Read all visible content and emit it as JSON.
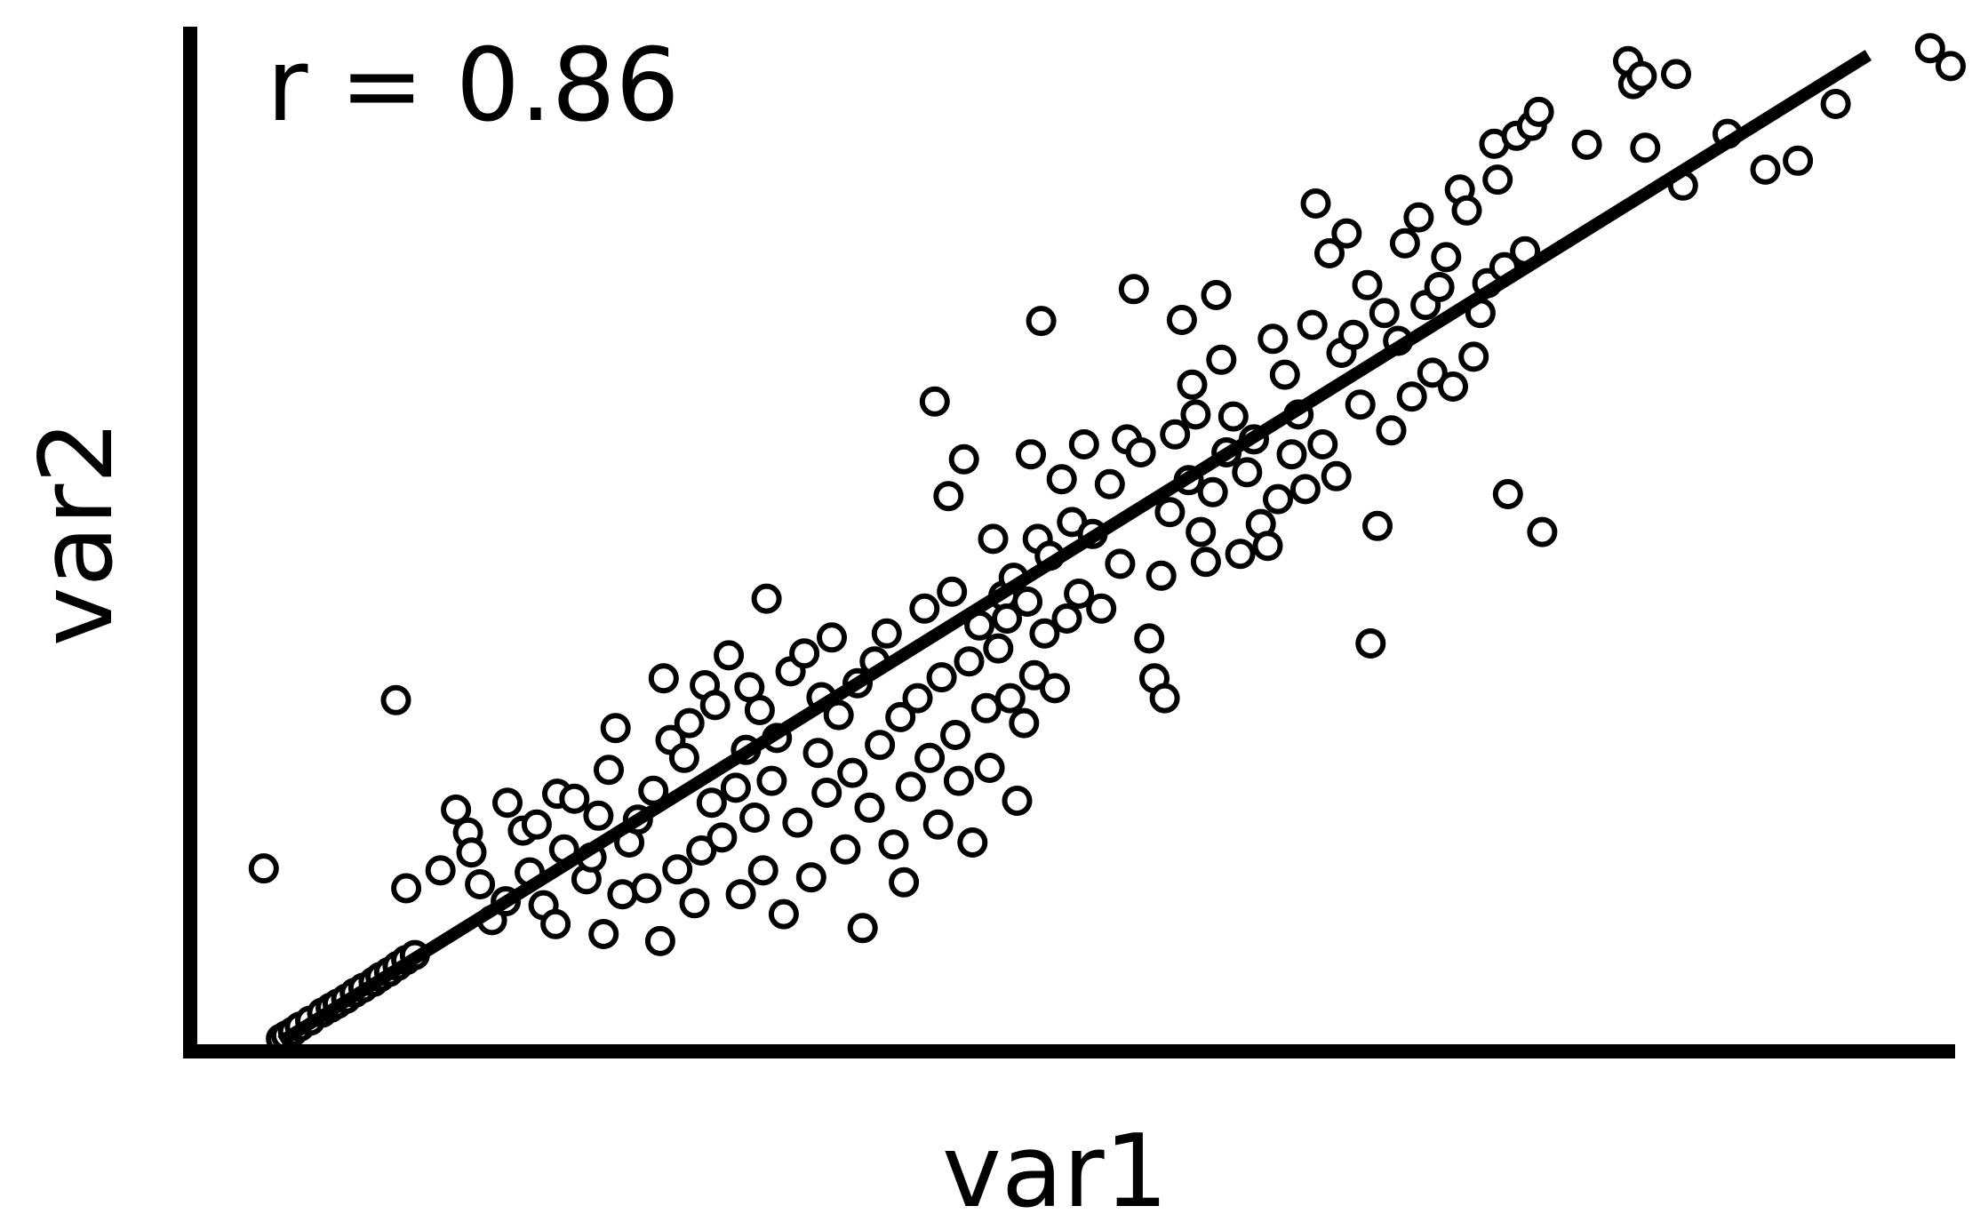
{
  "chart_data": {
    "type": "scatter",
    "xlabel": "var1",
    "ylabel": "var2",
    "annotation": "r = 0.86",
    "xlim": [
      0,
      10
    ],
    "ylim": [
      0,
      10
    ],
    "grid": false,
    "legend": "none",
    "colors": {
      "marker_edge": "#000000",
      "marker_fill": "#ffffff",
      "line": "#000000",
      "axis": "#000000"
    },
    "regression_line": {
      "x": [
        0.27,
        9.52
      ],
      "y": [
        0,
        9.91
      ]
    },
    "points": [
      [
        0.27,
        0.03
      ],
      [
        0.3,
        0.06
      ],
      [
        0.34,
        0.1
      ],
      [
        0.38,
        0.15
      ],
      [
        0.44,
        0.21
      ],
      [
        0.51,
        0.29
      ],
      [
        0.56,
        0.34
      ],
      [
        0.6,
        0.38
      ],
      [
        0.65,
        0.43
      ],
      [
        0.7,
        0.49
      ],
      [
        0.75,
        0.54
      ],
      [
        0.81,
        0.6
      ],
      [
        0.85,
        0.65
      ],
      [
        0.9,
        0.7
      ],
      [
        0.95,
        0.76
      ],
      [
        1.0,
        0.82
      ],
      [
        1.05,
        0.87
      ],
      [
        0.17,
        1.74
      ],
      [
        0.94,
        3.43
      ],
      [
        1.0,
        1.54
      ],
      [
        1.2,
        1.72
      ],
      [
        1.29,
        2.33
      ],
      [
        1.36,
        2.1
      ],
      [
        1.38,
        1.9
      ],
      [
        1.43,
        1.58
      ],
      [
        1.5,
        1.22
      ],
      [
        1.58,
        1.41
      ],
      [
        1.59,
        2.4
      ],
      [
        1.68,
        2.12
      ],
      [
        1.72,
        1.7
      ],
      [
        1.76,
        2.18
      ],
      [
        1.8,
        1.37
      ],
      [
        1.87,
        1.18
      ],
      [
        1.88,
        2.49
      ],
      [
        1.92,
        1.93
      ],
      [
        1.98,
        2.44
      ],
      [
        2.05,
        1.63
      ],
      [
        2.08,
        1.85
      ],
      [
        2.12,
        2.27
      ],
      [
        2.15,
        1.08
      ],
      [
        2.18,
        2.73
      ],
      [
        2.22,
        3.15
      ],
      [
        2.26,
        1.48
      ],
      [
        2.3,
        2.0
      ],
      [
        2.35,
        2.23
      ],
      [
        2.4,
        1.54
      ],
      [
        2.44,
        2.52
      ],
      [
        2.48,
        1.01
      ],
      [
        2.5,
        3.65
      ],
      [
        2.54,
        3.03
      ],
      [
        2.58,
        1.73
      ],
      [
        2.62,
        2.85
      ],
      [
        2.65,
        3.2
      ],
      [
        2.68,
        1.39
      ],
      [
        2.72,
        1.92
      ],
      [
        2.74,
        3.58
      ],
      [
        2.78,
        2.4
      ],
      [
        2.8,
        3.38
      ],
      [
        2.84,
        2.05
      ],
      [
        2.88,
        3.88
      ],
      [
        2.92,
        2.55
      ],
      [
        2.95,
        1.48
      ],
      [
        2.98,
        2.93
      ],
      [
        3.0,
        3.56
      ],
      [
        3.03,
        2.25
      ],
      [
        3.06,
        3.33
      ],
      [
        3.08,
        1.72
      ],
      [
        3.1,
        4.45
      ],
      [
        3.13,
        2.62
      ],
      [
        3.16,
        3.05
      ],
      [
        3.2,
        1.28
      ],
      [
        3.24,
        3.72
      ],
      [
        3.28,
        2.2
      ],
      [
        3.32,
        3.9
      ],
      [
        3.36,
        1.65
      ],
      [
        3.4,
        2.9
      ],
      [
        3.42,
        3.46
      ],
      [
        3.45,
        2.5
      ],
      [
        3.48,
        4.06
      ],
      [
        3.52,
        3.28
      ],
      [
        3.56,
        1.93
      ],
      [
        3.6,
        2.7
      ],
      [
        3.63,
        3.6
      ],
      [
        3.66,
        1.14
      ],
      [
        3.7,
        2.35
      ],
      [
        3.73,
        3.82
      ],
      [
        3.76,
        2.98
      ],
      [
        3.8,
        4.1
      ],
      [
        3.84,
        1.98
      ],
      [
        3.88,
        3.26
      ],
      [
        3.9,
        1.6
      ],
      [
        3.94,
        2.56
      ],
      [
        3.98,
        3.45
      ],
      [
        4.02,
        4.35
      ],
      [
        4.05,
        2.85
      ],
      [
        4.08,
        6.43
      ],
      [
        4.1,
        2.18
      ],
      [
        4.12,
        3.66
      ],
      [
        4.16,
        5.48
      ],
      [
        4.18,
        4.52
      ],
      [
        4.2,
        3.08
      ],
      [
        4.22,
        2.62
      ],
      [
        4.25,
        5.85
      ],
      [
        4.28,
        3.82
      ],
      [
        4.3,
        2.0
      ],
      [
        4.34,
        4.18
      ],
      [
        4.38,
        3.35
      ],
      [
        4.4,
        2.75
      ],
      [
        4.42,
        5.05
      ],
      [
        4.45,
        3.95
      ],
      [
        4.48,
        4.48
      ],
      [
        4.5,
        4.25
      ],
      [
        4.52,
        3.45
      ],
      [
        4.54,
        4.66
      ],
      [
        4.56,
        2.42
      ],
      [
        4.6,
        3.2
      ],
      [
        4.62,
        4.42
      ],
      [
        4.64,
        5.9
      ],
      [
        4.66,
        3.68
      ],
      [
        4.68,
        5.05
      ],
      [
        4.7,
        7.24
      ],
      [
        4.72,
        4.1
      ],
      [
        4.75,
        4.88
      ],
      [
        4.78,
        3.55
      ],
      [
        4.82,
        5.65
      ],
      [
        4.85,
        4.25
      ],
      [
        4.88,
        5.22
      ],
      [
        4.92,
        4.5
      ],
      [
        4.95,
        6.0
      ],
      [
        5.0,
        5.1
      ],
      [
        5.05,
        4.35
      ],
      [
        5.1,
        5.6
      ],
      [
        5.16,
        4.8
      ],
      [
        5.2,
        6.05
      ],
      [
        5.24,
        7.56
      ],
      [
        5.28,
        5.92
      ],
      [
        5.33,
        4.05
      ],
      [
        5.36,
        3.65
      ],
      [
        5.4,
        4.68
      ],
      [
        5.42,
        3.45
      ],
      [
        5.45,
        5.32
      ],
      [
        5.48,
        6.1
      ],
      [
        5.52,
        7.25
      ],
      [
        5.56,
        5.64
      ],
      [
        5.58,
        6.6
      ],
      [
        5.6,
        6.3
      ],
      [
        5.63,
        5.12
      ],
      [
        5.66,
        4.82
      ],
      [
        5.7,
        5.52
      ],
      [
        5.72,
        7.5
      ],
      [
        5.75,
        6.85
      ],
      [
        5.78,
        5.92
      ],
      [
        5.82,
        6.28
      ],
      [
        5.86,
        4.9
      ],
      [
        5.9,
        5.72
      ],
      [
        5.94,
        6.05
      ],
      [
        5.98,
        5.2
      ],
      [
        6.02,
        4.98
      ],
      [
        6.05,
        7.06
      ],
      [
        6.08,
        5.45
      ],
      [
        6.12,
        6.7
      ],
      [
        6.16,
        5.9
      ],
      [
        6.2,
        6.3
      ],
      [
        6.24,
        5.55
      ],
      [
        6.28,
        7.2
      ],
      [
        6.3,
        8.42
      ],
      [
        6.34,
        6.0
      ],
      [
        6.38,
        7.92
      ],
      [
        6.42,
        5.68
      ],
      [
        6.45,
        6.92
      ],
      [
        6.48,
        8.12
      ],
      [
        6.52,
        7.1
      ],
      [
        6.56,
        6.4
      ],
      [
        6.6,
        7.6
      ],
      [
        6.62,
        4.0
      ],
      [
        6.66,
        5.18
      ],
      [
        6.7,
        7.32
      ],
      [
        6.74,
        6.14
      ],
      [
        6.78,
        7.04
      ],
      [
        6.82,
        8.02
      ],
      [
        6.86,
        6.48
      ],
      [
        6.9,
        8.28
      ],
      [
        6.94,
        7.4
      ],
      [
        6.98,
        6.72
      ],
      [
        7.02,
        7.58
      ],
      [
        7.06,
        7.88
      ],
      [
        7.1,
        6.58
      ],
      [
        7.14,
        8.56
      ],
      [
        7.18,
        8.35
      ],
      [
        7.22,
        6.88
      ],
      [
        7.26,
        7.32
      ],
      [
        7.3,
        7.62
      ],
      [
        7.34,
        9.02
      ],
      [
        7.36,
        8.66
      ],
      [
        7.4,
        7.78
      ],
      [
        7.42,
        5.5
      ],
      [
        7.47,
        9.1
      ],
      [
        7.52,
        7.94
      ],
      [
        7.56,
        9.2
      ],
      [
        7.6,
        9.34
      ],
      [
        7.62,
        5.12
      ],
      [
        7.88,
        9.01
      ],
      [
        8.12,
        9.85
      ],
      [
        8.15,
        9.62
      ],
      [
        8.2,
        9.7
      ],
      [
        8.22,
        8.98
      ],
      [
        8.4,
        9.72
      ],
      [
        8.44,
        8.6
      ],
      [
        8.7,
        9.12
      ],
      [
        8.92,
        8.76
      ],
      [
        9.11,
        8.85
      ],
      [
        9.33,
        9.42
      ],
      [
        9.88,
        9.98
      ],
      [
        10.0,
        9.8
      ]
    ]
  }
}
